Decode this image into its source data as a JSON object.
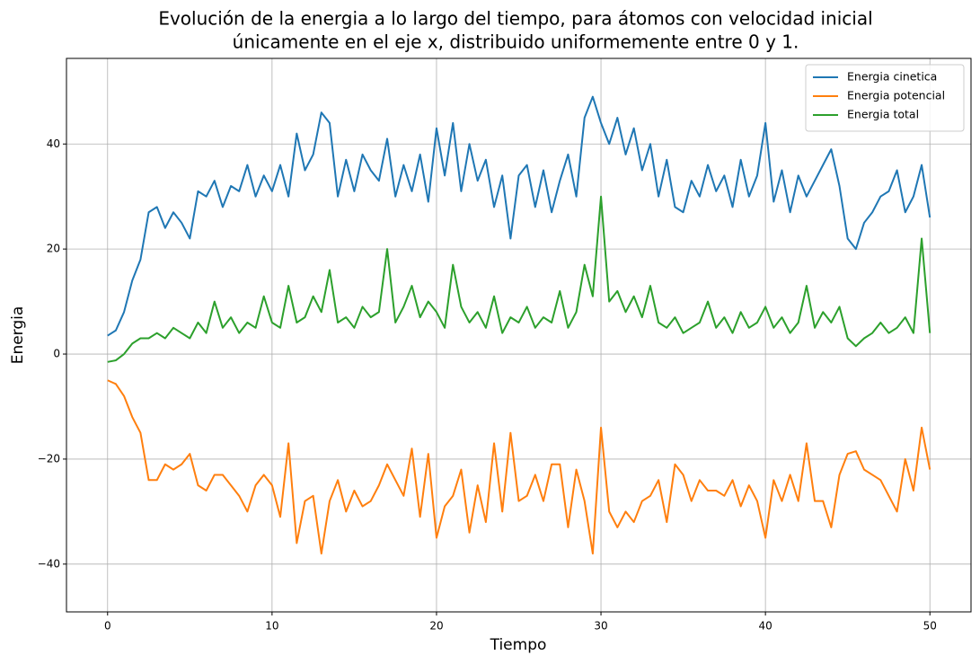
{
  "chart_data": {
    "type": "line",
    "title": [
      "Evolución de la energia a lo largo del tiempo, para átomos con velocidad inicial",
      "únicamente en el eje x, distribuido uniformemente entre 0 y 1."
    ],
    "x_label": "Tiempo",
    "y_label": "Energia",
    "x": [
      0,
      0.5,
      1,
      1.5,
      2,
      2.5,
      3,
      3.5,
      4,
      4.5,
      5,
      5.5,
      6,
      6.5,
      7,
      7.5,
      8,
      8.5,
      9,
      9.5,
      10,
      10.5,
      11,
      11.5,
      12,
      12.5,
      13,
      13.5,
      14,
      14.5,
      15,
      15.5,
      16,
      16.5,
      17,
      17.5,
      18,
      18.5,
      19,
      19.5,
      20,
      20.5,
      21,
      21.5,
      22,
      22.5,
      23,
      23.5,
      24,
      24.5,
      25,
      25.5,
      26,
      26.5,
      27,
      27.5,
      28,
      28.5,
      29,
      29.5,
      30,
      30.5,
      31,
      31.5,
      32,
      32.5,
      33,
      33.5,
      34,
      34.5,
      35,
      35.5,
      36,
      36.5,
      37,
      37.5,
      38,
      38.5,
      39,
      39.5,
      40,
      40.5,
      41,
      41.5,
      42,
      42.5,
      43,
      43.5,
      44,
      44.5,
      45,
      45.5,
      46,
      46.5,
      47,
      47.5,
      48,
      48.5,
      49,
      49.5,
      50
    ],
    "series": [
      {
        "name": "Energia cinetica",
        "color": "#1f77b4",
        "values": [
          3.5,
          4.5,
          8,
          14,
          18,
          27,
          28,
          24,
          27,
          25,
          22,
          31,
          30,
          33,
          28,
          32,
          31,
          36,
          30,
          34,
          31,
          36,
          30,
          42,
          35,
          38,
          46,
          44,
          30,
          37,
          31,
          38,
          35,
          33,
          41,
          30,
          36,
          31,
          38,
          29,
          43,
          34,
          44,
          31,
          40,
          33,
          37,
          28,
          34,
          22,
          34,
          36,
          28,
          35,
          27,
          33,
          38,
          30,
          45,
          49,
          44,
          40,
          45,
          38,
          43,
          35,
          40,
          30,
          37,
          28,
          27,
          33,
          30,
          36,
          31,
          34,
          28,
          37,
          30,
          34,
          44,
          29,
          35,
          27,
          34,
          30,
          33,
          36,
          39,
          32,
          22,
          20,
          25,
          27,
          30,
          31,
          35,
          27,
          30,
          36,
          26
        ]
      },
      {
        "name": "Energia potencial",
        "color": "#ff7f0e",
        "values": [
          -5,
          -5.7,
          -8,
          -12,
          -15,
          -24,
          -24,
          -21,
          -22,
          -21,
          -19,
          -25,
          -26,
          -23,
          -23,
          -25,
          -27,
          -30,
          -25,
          -23,
          -25,
          -31,
          -17,
          -36,
          -28,
          -27,
          -38,
          -28,
          -24,
          -30,
          -26,
          -29,
          -28,
          -25,
          -21,
          -24,
          -27,
          -18,
          -31,
          -19,
          -35,
          -29,
          -27,
          -22,
          -34,
          -25,
          -32,
          -17,
          -30,
          -15,
          -28,
          -27,
          -23,
          -28,
          -21,
          -21,
          -33,
          -22,
          -28,
          -38,
          -14,
          -30,
          -33,
          -30,
          -32,
          -28,
          -27,
          -24,
          -32,
          -21,
          -23,
          -28,
          -24,
          -26,
          -26,
          -27,
          -24,
          -29,
          -25,
          -28,
          -35,
          -24,
          -28,
          -23,
          -28,
          -17,
          -28,
          -28,
          -33,
          -23,
          -19,
          -18.5,
          -22,
          -23,
          -24,
          -27,
          -30,
          -20,
          -26,
          -14,
          -22
        ]
      },
      {
        "name": "Energia total",
        "color": "#2ca02c",
        "values": [
          -1.5,
          -1.2,
          0,
          2,
          3,
          3,
          4,
          3,
          5,
          4,
          3,
          6,
          4,
          10,
          5,
          7,
          4,
          6,
          5,
          11,
          6,
          5,
          13,
          6,
          7,
          11,
          8,
          16,
          6,
          7,
          5,
          9,
          7,
          8,
          20,
          6,
          9,
          13,
          7,
          10,
          8,
          5,
          17,
          9,
          6,
          8,
          5,
          11,
          4,
          7,
          6,
          9,
          5,
          7,
          6,
          12,
          5,
          8,
          17,
          11,
          30,
          10,
          12,
          8,
          11,
          7,
          13,
          6,
          5,
          7,
          4,
          5,
          6,
          10,
          5,
          7,
          4,
          8,
          5,
          6,
          9,
          5,
          7,
          4,
          6,
          13,
          5,
          8,
          6,
          9,
          3,
          1.5,
          3,
          4,
          6,
          4,
          5,
          7,
          4,
          22,
          4
        ]
      }
    ],
    "xlim": [
      -2.5,
      52.5
    ],
    "ylim": [
      -49.1,
      56.3
    ],
    "xticks": [
      0,
      10,
      20,
      30,
      40,
      50
    ],
    "yticks": [
      {
        "value": -40,
        "label": "−40"
      },
      {
        "value": -20,
        "label": "−20"
      },
      0,
      20,
      40
    ],
    "grid": true,
    "legend": "upper right"
  }
}
